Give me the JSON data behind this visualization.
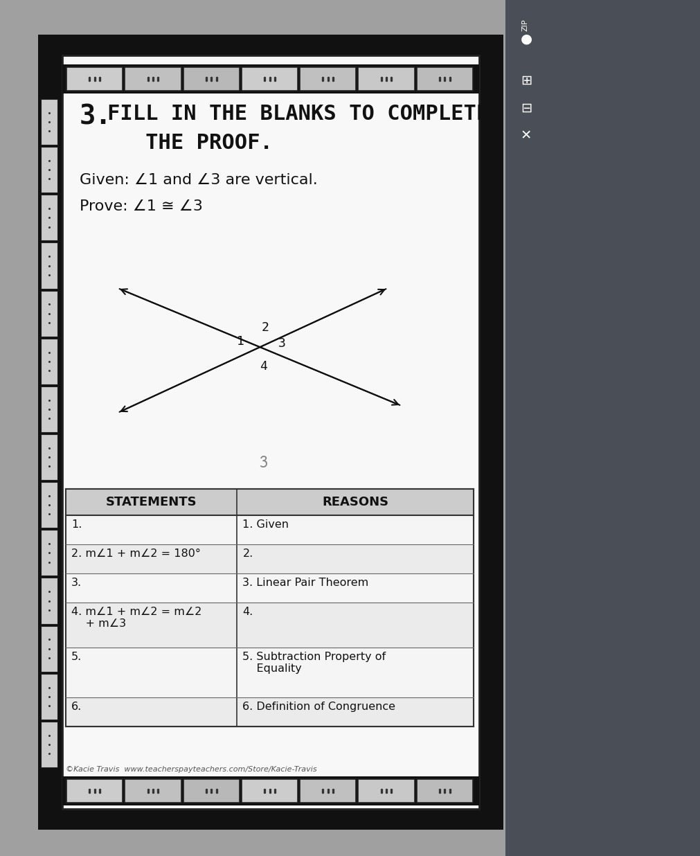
{
  "title_number": "3.",
  "title_line1": "FILL IN THE BLANKS TO COMPLETE",
  "title_line2": "   THE PROOF.",
  "given_text": "Given: ∠1 and ∠3 are vertical.",
  "prove_text": "Prove: ∠1 ≅ ∠3",
  "table_headers": [
    "STATEMENTS",
    "REASONS"
  ],
  "table_rows": [
    [
      "1.",
      "1. Given"
    ],
    [
      "2. m∠1 + m∠2 = 180°",
      "2."
    ],
    [
      "3.",
      "3. Linear Pair Theorem"
    ],
    [
      "4. m∠1 + m∠2 = m∠2\n    + m∠3",
      "4."
    ],
    [
      "5.",
      "5. Subtraction Property of\n    Equality"
    ],
    [
      "6.",
      "6. Definition of Congruence"
    ]
  ],
  "footer_text": "©Kacie Travis  www.teacherspayteachers.com/Store/Kacie-Travis",
  "outer_bg": "#888888",
  "right_sidebar_color": "#5a6068",
  "card_border_outer": "#111111",
  "card_bg": "#ffffff",
  "dotted_border_dark": "#1a1a1a",
  "tile_light": "#e0e0e0",
  "tile_dark": "#111111",
  "table_header_bg": "#cccccc",
  "table_row_bg": "#f2f2f2",
  "text_dark": "#111111",
  "text_medium": "#333333"
}
